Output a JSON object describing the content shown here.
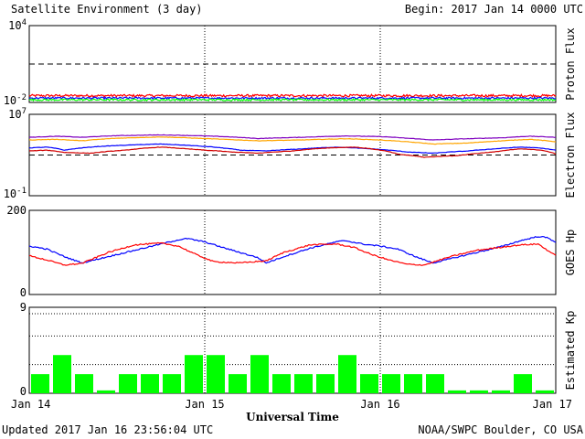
{
  "header": {
    "title": "Satellite Environment (3 day)",
    "begin": "Begin:  2017 Jan 14 0000 UTC"
  },
  "footer": {
    "updated": "Updated 2017 Jan 16 23:56:04 UTC",
    "credit": "NOAA/SWPC Boulder, CO USA"
  },
  "colors": {
    "red": "#ff0000",
    "blue": "#0000ff",
    "green": "#00ff00",
    "orange": "#ffa500",
    "purple": "#7f00bf",
    "crimson": "#d00000",
    "kp_bar": "#00ff00"
  },
  "chart_data": [
    {
      "type": "line",
      "panel": "proton",
      "ylabel": "Proton Flux",
      "scale": "log",
      "ylim": [
        0.01,
        10000
      ],
      "tick_labels": [
        {
          "base": "10",
          "exp": "4",
          "value": 10000
        },
        {
          "base": "10",
          "exp": "-2",
          "value": 0.01
        }
      ],
      "threshold": 10,
      "x_range_days": [
        0,
        3
      ],
      "series": [
        {
          "color": "red",
          "level": 0.034,
          "noise": 0.18
        },
        {
          "color": "blue",
          "level": 0.022,
          "noise": 0.14
        },
        {
          "color": "green",
          "level": 0.016,
          "noise": 0.14
        }
      ]
    },
    {
      "type": "line",
      "panel": "electron",
      "ylabel": "Electron Flux",
      "scale": "log",
      "ylim": [
        0.1,
        10000000
      ],
      "tick_labels": [
        {
          "base": "10",
          "exp": "7",
          "value": 10000000
        },
        {
          "base": "10",
          "exp": "-1",
          "value": 0.1
        }
      ],
      "threshold": 1000,
      "x_range_days": [
        0,
        3
      ],
      "series": [
        {
          "color": "purple",
          "points": [
            [
              0,
              55000
            ],
            [
              0.15,
              70000
            ],
            [
              0.3,
              55000
            ],
            [
              0.5,
              80000
            ],
            [
              0.75,
              95000
            ],
            [
              0.95,
              80000
            ],
            [
              1.1,
              65000
            ],
            [
              1.3,
              42000
            ],
            [
              1.55,
              55000
            ],
            [
              1.8,
              75000
            ],
            [
              2.0,
              65000
            ],
            [
              2.15,
              45000
            ],
            [
              2.3,
              30000
            ],
            [
              2.5,
              40000
            ],
            [
              2.7,
              50000
            ],
            [
              2.85,
              70000
            ],
            [
              3.0,
              55000
            ]
          ]
        },
        {
          "color": "orange",
          "points": [
            [
              0,
              30000
            ],
            [
              0.15,
              35000
            ],
            [
              0.3,
              25000
            ],
            [
              0.5,
              45000
            ],
            [
              0.75,
              60000
            ],
            [
              0.95,
              45000
            ],
            [
              1.1,
              35000
            ],
            [
              1.3,
              25000
            ],
            [
              1.55,
              30000
            ],
            [
              1.8,
              40000
            ],
            [
              2.0,
              30000
            ],
            [
              2.15,
              20000
            ],
            [
              2.3,
              12000
            ],
            [
              2.5,
              15000
            ],
            [
              2.7,
              25000
            ],
            [
              2.85,
              35000
            ],
            [
              3.0,
              20000
            ]
          ]
        },
        {
          "color": "blue",
          "points": [
            [
              0,
              5000
            ],
            [
              0.1,
              6000
            ],
            [
              0.2,
              3000
            ],
            [
              0.4,
              7000
            ],
            [
              0.6,
              10000
            ],
            [
              0.75,
              12000
            ],
            [
              0.95,
              8000
            ],
            [
              1.1,
              5000
            ],
            [
              1.2,
              3000
            ],
            [
              1.35,
              2500
            ],
            [
              1.55,
              4000
            ],
            [
              1.75,
              6000
            ],
            [
              1.9,
              4500
            ],
            [
              2.0,
              3500
            ],
            [
              2.15,
              2000
            ],
            [
              2.3,
              1500
            ],
            [
              2.5,
              2500
            ],
            [
              2.65,
              4000
            ],
            [
              2.8,
              6000
            ],
            [
              2.9,
              5000
            ],
            [
              3.0,
              3000
            ]
          ]
        },
        {
          "color": "crimson",
          "points": [
            [
              0,
              2500
            ],
            [
              0.1,
              3000
            ],
            [
              0.2,
              1800
            ],
            [
              0.35,
              1500
            ],
            [
              0.55,
              3000
            ],
            [
              0.75,
              6000
            ],
            [
              0.9,
              4000
            ],
            [
              1.0,
              3000
            ],
            [
              1.15,
              2000
            ],
            [
              1.3,
              1500
            ],
            [
              1.5,
              2500
            ],
            [
              1.7,
              5000
            ],
            [
              1.85,
              6000
            ],
            [
              2.0,
              3000
            ],
            [
              2.1,
              1200
            ],
            [
              2.25,
              600
            ],
            [
              2.45,
              900
            ],
            [
              2.65,
              2000
            ],
            [
              2.8,
              4000
            ],
            [
              2.92,
              3000
            ],
            [
              3.0,
              1200
            ]
          ]
        }
      ]
    },
    {
      "type": "line",
      "panel": "hp",
      "ylabel": "GOES Hp",
      "scale": "linear",
      "ylim": [
        0,
        200
      ],
      "tick_labels": [
        {
          "base": "200",
          "value": 200
        },
        {
          "base": "0",
          "value": 0
        }
      ],
      "x_range_days": [
        0,
        3
      ],
      "series": [
        {
          "color": "blue",
          "points": [
            [
              0,
              115
            ],
            [
              0.1,
              108
            ],
            [
              0.2,
              90
            ],
            [
              0.3,
              75
            ],
            [
              0.4,
              85
            ],
            [
              0.55,
              100
            ],
            [
              0.7,
              115
            ],
            [
              0.85,
              130
            ],
            [
              0.9,
              133
            ],
            [
              1.0,
              125
            ],
            [
              1.1,
              112
            ],
            [
              1.2,
              100
            ],
            [
              1.3,
              88
            ],
            [
              1.35,
              75
            ],
            [
              1.45,
              90
            ],
            [
              1.6,
              110
            ],
            [
              1.75,
              125
            ],
            [
              1.8,
              128
            ],
            [
              1.9,
              120
            ],
            [
              2.0,
              115
            ],
            [
              2.1,
              108
            ],
            [
              2.2,
              90
            ],
            [
              2.3,
              75
            ],
            [
              2.4,
              85
            ],
            [
              2.55,
              100
            ],
            [
              2.7,
              115
            ],
            [
              2.8,
              128
            ],
            [
              2.9,
              138
            ],
            [
              2.95,
              135
            ],
            [
              3.0,
              125
            ]
          ]
        },
        {
          "color": "red",
          "points": [
            [
              0,
              92
            ],
            [
              0.1,
              82
            ],
            [
              0.2,
              70
            ],
            [
              0.3,
              74
            ],
            [
              0.45,
              100
            ],
            [
              0.6,
              118
            ],
            [
              0.75,
              122
            ],
            [
              0.85,
              115
            ],
            [
              0.95,
              95
            ],
            [
              1.05,
              78
            ],
            [
              1.2,
              75
            ],
            [
              1.35,
              80
            ],
            [
              1.45,
              100
            ],
            [
              1.6,
              118
            ],
            [
              1.75,
              120
            ],
            [
              1.85,
              112
            ],
            [
              1.95,
              95
            ],
            [
              2.05,
              82
            ],
            [
              2.15,
              72
            ],
            [
              2.25,
              70
            ],
            [
              2.4,
              90
            ],
            [
              2.55,
              105
            ],
            [
              2.7,
              113
            ],
            [
              2.8,
              118
            ],
            [
              2.9,
              120
            ],
            [
              3.0,
              92
            ]
          ]
        }
      ]
    },
    {
      "type": "bar",
      "panel": "kp",
      "ylabel": "Estimated Kp",
      "ylim": [
        0,
        9
      ],
      "tick_labels": [
        {
          "base": "9",
          "value": 9
        },
        {
          "base": "0",
          "value": 0
        }
      ],
      "values": [
        2,
        4,
        2,
        0.3,
        2,
        2,
        2,
        4,
        4,
        2,
        4,
        2,
        2,
        2,
        4,
        2,
        2,
        2,
        2,
        0.3,
        0.3,
        0.3,
        2,
        0.3
      ]
    }
  ],
  "x_axis": {
    "title": "Universal Time",
    "ticks": [
      "Jan 14",
      "Jan 15",
      "Jan 16",
      "Jan 17"
    ]
  }
}
